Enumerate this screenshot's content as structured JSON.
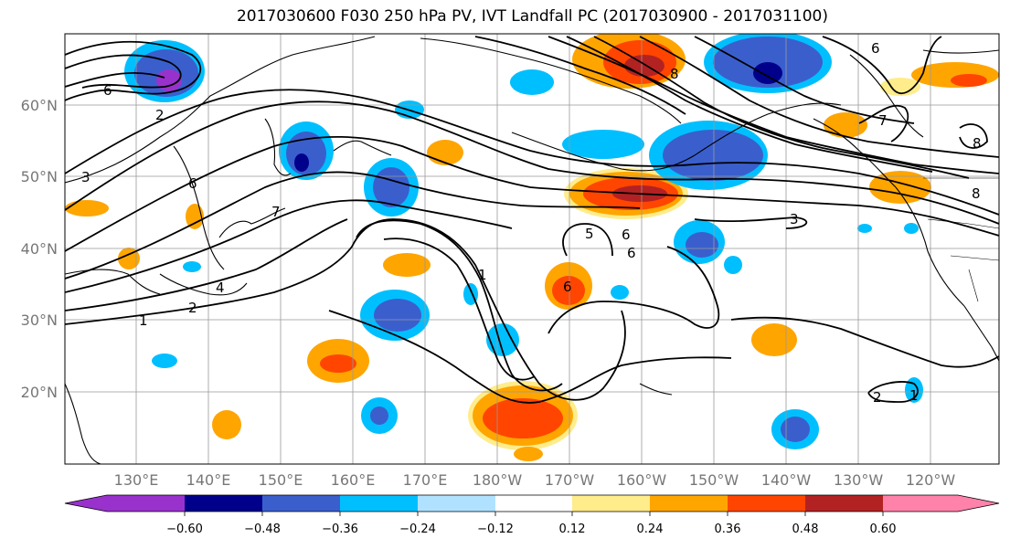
{
  "title": "2017030600 F030 250 hPa PV, IVT Landfall PC (2017030900 - 2017031100)",
  "lat_labels": [
    "60°N",
    "50°N",
    "40°N",
    "30°N",
    "20°N"
  ],
  "lon_labels": [
    "130°E",
    "140°E",
    "150°E",
    "160°E",
    "170°E",
    "180°W",
    "170°W",
    "160°W",
    "150°W",
    "140°W",
    "130°W",
    "120°W"
  ],
  "colorbar": {
    "colors": [
      "#9932CC",
      "#00008B",
      "#3A5FCD",
      "#00BFFF",
      "#B0E2FF",
      "#FFFFFF",
      "#FFEC8B",
      "#FFA500",
      "#FF4500",
      "#B22222",
      "#FF82AB"
    ],
    "ticks": [
      "−0.60",
      "−0.48",
      "−0.36",
      "−0.24",
      "−0.12",
      "0.12",
      "0.24",
      "0.36",
      "0.48",
      "0.60"
    ]
  },
  "contour_labels": [
    "6",
    "2",
    "3",
    "6",
    "7",
    "2",
    "4",
    "1",
    "1",
    "5",
    "6",
    "6",
    "6",
    "3",
    "8",
    "7",
    "8",
    "8",
    "6",
    "2",
    "1"
  ],
  "anomaly_colors": {
    "neg_light": "#B0E2FF",
    "neg_mid": "#00BFFF",
    "neg_strong": "#3A5FCD",
    "neg_max": "#00008B",
    "pos_light": "#FFEC8B",
    "pos_mid": "#FFA500",
    "pos_strong": "#FF4500",
    "pos_max": "#B22222"
  }
}
